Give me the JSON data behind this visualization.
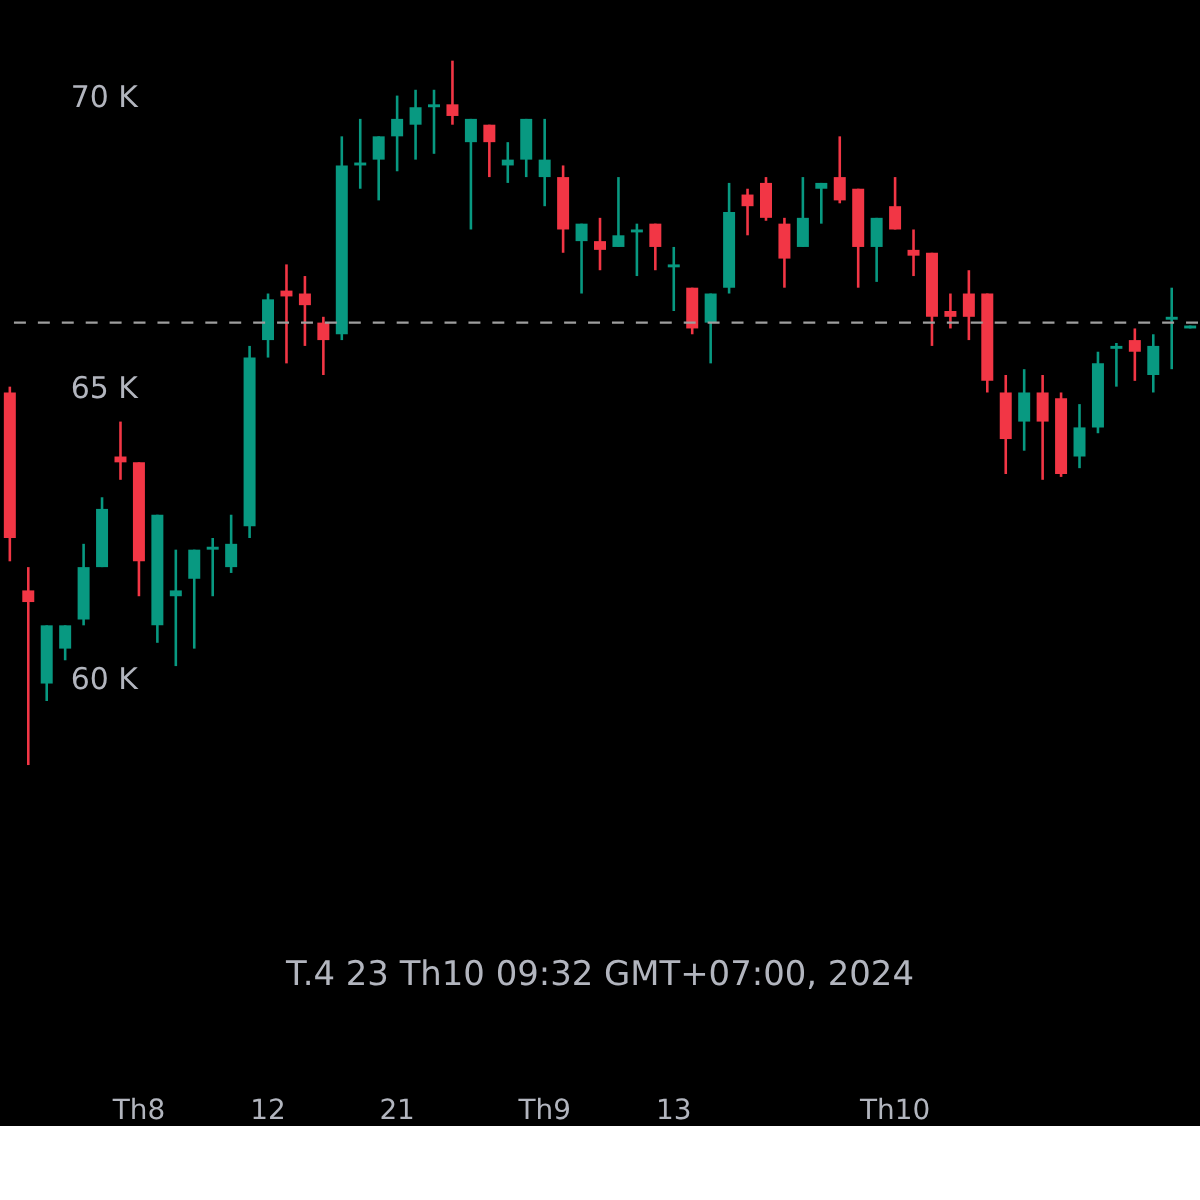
{
  "chart_data": {
    "type": "candlestick",
    "categories": [
      null,
      null,
      null,
      null,
      null,
      null,
      null,
      "Th8",
      null,
      null,
      null,
      null,
      null,
      null,
      "12",
      null,
      null,
      null,
      null,
      null,
      null,
      "21",
      null,
      null,
      null,
      null,
      null,
      null,
      null,
      "Th9",
      null,
      null,
      null,
      null,
      null,
      null,
      "13",
      null,
      null,
      null,
      null,
      null,
      null,
      null,
      null,
      null,
      null,
      null,
      "Th10",
      null,
      null,
      null,
      null,
      null,
      null,
      null,
      null,
      null,
      null,
      null,
      null,
      null,
      null,
      null,
      null
    ],
    "ohlc": [
      [
        64900,
        65000,
        62000,
        62400
      ],
      [
        61500,
        61900,
        58500,
        61300
      ],
      [
        59900,
        60900,
        59600,
        60900
      ],
      [
        60500,
        60900,
        60300,
        60900
      ],
      [
        61000,
        62300,
        60900,
        61900
      ],
      [
        61900,
        63100,
        61900,
        62900
      ],
      [
        63800,
        64400,
        63400,
        63700
      ],
      [
        63700,
        63700,
        61400,
        62000
      ],
      [
        60900,
        62800,
        60600,
        62800
      ],
      [
        61400,
        62200,
        60200,
        61500
      ],
      [
        61700,
        62200,
        60500,
        62200
      ],
      [
        62200,
        62400,
        61400,
        62250
      ],
      [
        61900,
        62800,
        61800,
        62300
      ],
      [
        62600,
        65700,
        62400,
        65500
      ],
      [
        65800,
        66600,
        65500,
        66500
      ],
      [
        66650,
        67100,
        65400,
        66550
      ],
      [
        66600,
        66900,
        65700,
        66400
      ],
      [
        66100,
        66200,
        65200,
        65800
      ],
      [
        65900,
        69300,
        65800,
        68800
      ],
      [
        68800,
        69600,
        68400,
        68850
      ],
      [
        68900,
        69300,
        68200,
        69300
      ],
      [
        69300,
        70000,
        68700,
        69600
      ],
      [
        69500,
        70100,
        68900,
        69800
      ],
      [
        69800,
        70100,
        69000,
        69850
      ],
      [
        69850,
        70600,
        69500,
        69650
      ],
      [
        69200,
        69600,
        67700,
        69600
      ],
      [
        69500,
        69500,
        68600,
        69200
      ],
      [
        68800,
        69200,
        68500,
        68900
      ],
      [
        68900,
        69600,
        68600,
        69600
      ],
      [
        68600,
        69600,
        68100,
        68900
      ],
      [
        68600,
        68800,
        67300,
        67700
      ],
      [
        67500,
        67800,
        66600,
        67800
      ],
      [
        67500,
        67900,
        67000,
        67350
      ],
      [
        67400,
        68600,
        67400,
        67600
      ],
      [
        67650,
        67800,
        66900,
        67700
      ],
      [
        67800,
        67800,
        67000,
        67400
      ],
      [
        67050,
        67400,
        66300,
        67100
      ],
      [
        66700,
        66700,
        65900,
        66000
      ],
      [
        66100,
        66600,
        65400,
        66600
      ],
      [
        66700,
        68500,
        66600,
        68000
      ],
      [
        68300,
        68400,
        67600,
        68100
      ],
      [
        68500,
        68600,
        67850,
        67900
      ],
      [
        67800,
        67900,
        66700,
        67200
      ],
      [
        67400,
        68600,
        67400,
        67900
      ],
      [
        68400,
        68500,
        67800,
        68500
      ],
      [
        68600,
        69300,
        68150,
        68200
      ],
      [
        68400,
        68400,
        66700,
        67400
      ],
      [
        67400,
        67900,
        66800,
        67900
      ],
      [
        68100,
        68600,
        67700,
        67700
      ],
      [
        67350,
        67700,
        66900,
        67250
      ],
      [
        67300,
        67300,
        65700,
        66200
      ],
      [
        66300,
        66600,
        66000,
        66200
      ],
      [
        66600,
        67000,
        65800,
        66200
      ],
      [
        66600,
        66600,
        64900,
        65100
      ],
      [
        64900,
        65200,
        63500,
        64100
      ],
      [
        64400,
        65300,
        63900,
        64900
      ],
      [
        64900,
        65200,
        63400,
        64400
      ],
      [
        64800,
        64900,
        63450,
        63500
      ],
      [
        63800,
        64700,
        63600,
        64300
      ],
      [
        64300,
        65600,
        64200,
        65400
      ],
      [
        65650,
        65750,
        65000,
        65700
      ],
      [
        65800,
        66000,
        65100,
        65600
      ],
      [
        65200,
        65900,
        64900,
        65700
      ],
      [
        66150,
        66700,
        65300,
        66200
      ],
      [
        66000,
        66050,
        66000,
        66050
      ]
    ],
    "colors": [
      "#f23645",
      "#f23645",
      "#089981",
      "#089981",
      "#089981",
      "#089981",
      "#f23645",
      "#f23645",
      "#089981",
      "#089981",
      "#089981",
      "#089981",
      "#089981",
      "#089981",
      "#089981",
      "#f23645",
      "#f23645",
      "#f23645",
      "#089981",
      "#089981",
      "#089981",
      "#089981",
      "#089981",
      "#089981",
      "#f23645",
      "#089981",
      "#f23645",
      "#089981",
      "#089981",
      "#089981",
      "#f23645",
      "#089981",
      "#f23645",
      "#089981",
      "#089981",
      "#f23645",
      "#089981",
      "#f23645",
      "#089981",
      "#089981",
      "#f23645",
      "#f23645",
      "#f23645",
      "#089981",
      "#089981",
      "#f23645",
      "#f23645",
      "#089981",
      "#f23645",
      "#f23645",
      "#f23645",
      "#f23645",
      "#f23645",
      "#f23645",
      "#f23645",
      "#089981",
      "#f23645",
      "#f23645",
      "#089981",
      "#089981",
      "#089981",
      "#f23645",
      "#089981",
      "#089981",
      "#089981"
    ],
    "ylim": [
      52400,
      71610
    ],
    "yticks": [
      {
        "value": 60000,
        "label": "60 K"
      },
      {
        "value": 65000,
        "label": "65 K"
      },
      {
        "value": 70000,
        "label": "70 K"
      }
    ],
    "ref_lines": [
      {
        "axis": "y",
        "value": 66100,
        "color": "#9e9e9e",
        "line_style": "dashed"
      }
    ],
    "annotations": [
      "T.4 23 Th10 09:32 GMT+07:00, 2024"
    ],
    "grid": false
  }
}
